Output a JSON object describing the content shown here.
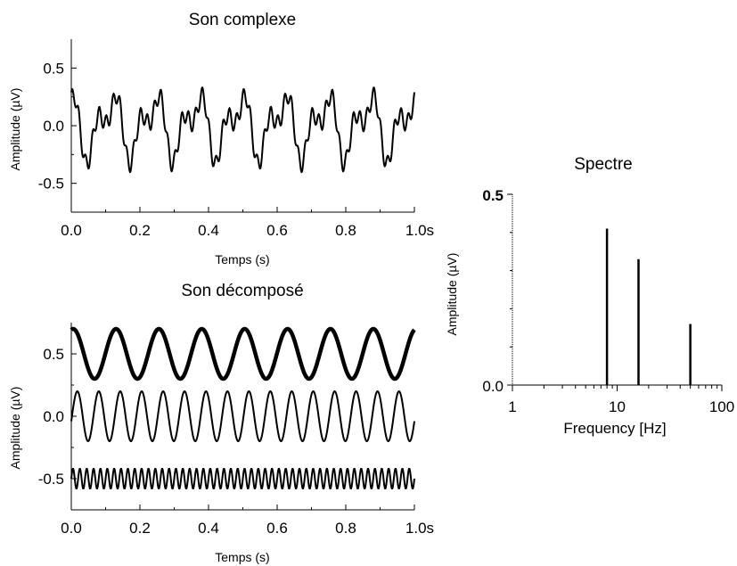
{
  "chart_data": [
    {
      "type": "line",
      "title": "Son complexe",
      "xlabel": "Temps (s)",
      "ylabel": "Amplitude (µV)",
      "xlim": [
        0,
        1.0
      ],
      "ylim": [
        -0.75,
        0.75
      ],
      "x_ticks": [
        "0.0",
        "0.2",
        "0.4",
        "0.6",
        "0.8",
        "1.0s"
      ],
      "y_ticks": [
        "0.5",
        "0.0",
        "-0.5"
      ],
      "y_tick_values": [
        0.5,
        0.0,
        -0.5
      ],
      "series": [
        {
          "components": [
            {
              "frequency_hz": 8,
              "amplitude": 0.2
            },
            {
              "frequency_hz": 16,
              "amplitude": 0.15
            },
            {
              "frequency_hz": 50,
              "amplitude": 0.07
            }
          ]
        }
      ]
    },
    {
      "type": "line",
      "title": "Son décomposé",
      "xlabel": "Temps (s)",
      "ylabel": "Amplitude (µV)",
      "xlim": [
        0,
        1.0
      ],
      "ylim": [
        -0.75,
        0.75
      ],
      "x_ticks": [
        "0.0",
        "0.2",
        "0.4",
        "0.6",
        "0.8",
        "1.0s"
      ],
      "y_ticks": [
        "0.5",
        "0.0",
        "-0.5"
      ],
      "y_tick_values": [
        0.5,
        0.0,
        -0.5
      ],
      "series": [
        {
          "frequency_hz": 8,
          "amplitude": 0.2,
          "offset": 0.5
        },
        {
          "frequency_hz": 16,
          "amplitude": 0.2,
          "offset": 0.0
        },
        {
          "frequency_hz": 50,
          "amplitude": 0.08,
          "offset": -0.5
        }
      ]
    },
    {
      "type": "bar",
      "title": "Spectre",
      "xlabel": "Frequency [Hz]",
      "ylabel": "Amplitude (µV)",
      "x_scale": "log",
      "xlim": [
        1,
        100
      ],
      "ylim": [
        0,
        0.5
      ],
      "x_ticks": [
        "1",
        "10",
        "100"
      ],
      "x_tick_values": [
        1,
        10,
        100
      ],
      "y_ticks": [
        "0.5",
        "0.0"
      ],
      "y_tick_values": [
        0.5,
        0.0
      ],
      "x": [
        8,
        16,
        50
      ],
      "values": [
        0.41,
        0.33,
        0.16
      ]
    }
  ]
}
